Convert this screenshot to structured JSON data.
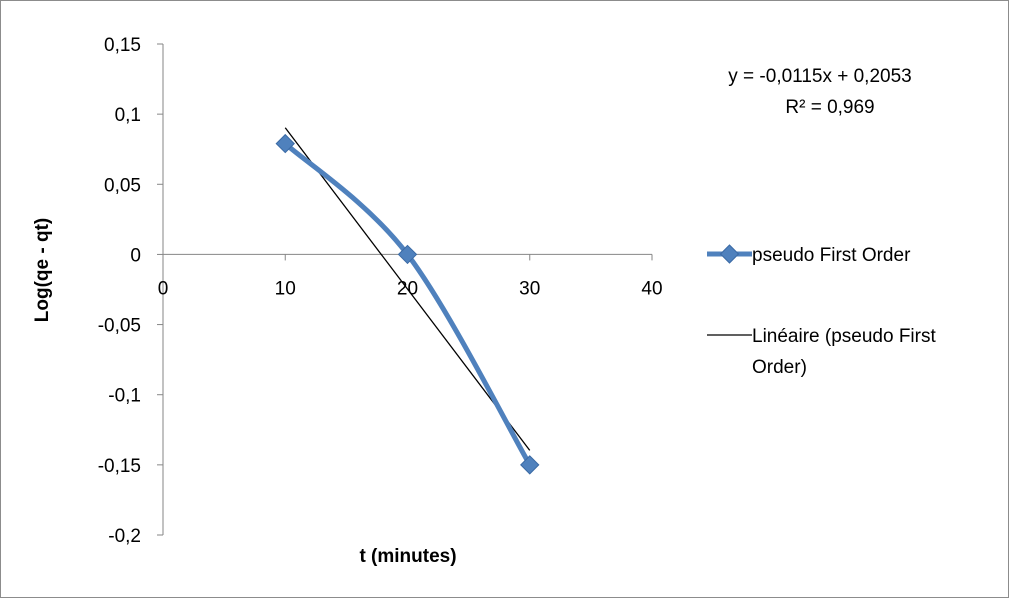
{
  "chart_data": {
    "type": "scatter",
    "title": "",
    "xlabel": "t (minutes)",
    "ylabel": "Log(qe - qt)",
    "xlim": [
      0,
      40
    ],
    "ylim": [
      -0.2,
      0.15
    ],
    "x_ticks": [
      0,
      10,
      20,
      30,
      40
    ],
    "x_tick_labels": [
      "0",
      "10",
      "20",
      "30",
      "40"
    ],
    "y_ticks": [
      0.15,
      0.1,
      0.05,
      0,
      -0.05,
      -0.1,
      -0.15,
      -0.2
    ],
    "y_tick_labels": [
      "0,15",
      "0,1",
      "0,05",
      "0",
      "-0,05",
      "-0,1",
      "-0,15",
      "-0,2"
    ],
    "grid": false,
    "legend_position": "right",
    "series": [
      {
        "name": "pseudo First Order",
        "type": "scatter-smooth",
        "x": [
          10,
          20,
          30
        ],
        "y": [
          0.079,
          0,
          -0.15
        ],
        "color": "#4F81BD",
        "marker": "diamond"
      },
      {
        "name": "Linéaire (pseudo First Order)",
        "type": "trendline",
        "slope": -0.0115,
        "intercept": 0.2053,
        "x_range": [
          10,
          30
        ],
        "color": "#000000"
      }
    ],
    "annotations": {
      "equation": "y = -0,0115x + 0,2053",
      "r_squared": "R² = 0,969"
    },
    "legend": {
      "entry1": "pseudo First Order",
      "entry2_line1": "Linéaire (pseudo First",
      "entry2_line2": "Order)"
    }
  }
}
